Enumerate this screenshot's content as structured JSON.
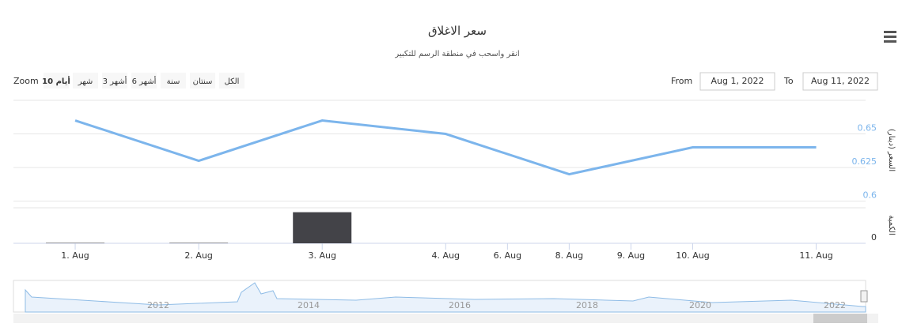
{
  "chart_data": {
    "type": "stock",
    "title": "سعر الاغلاق",
    "subtitle": "انقر واسحب في منطقة الرسم للتكبير",
    "zoom_label": "Zoom",
    "zoom_buttons": [
      "10 أيام",
      "شهر",
      "3 أشهر",
      "6 أشهر",
      "سنة",
      "سنتان",
      "الكل"
    ],
    "zoom_selected": 0,
    "from_label": "From",
    "from_value": "Aug 1, 2022",
    "to_label": "To",
    "to_value": "Aug 11, 2022",
    "categories": [
      "1. Aug",
      "2. Aug",
      "3. Aug",
      "4. Aug",
      "8. Aug",
      "10. Aug",
      "11. Aug"
    ],
    "xlim": [
      -0.5,
      6.4
    ],
    "xticks": [
      {
        "value": 0,
        "label": "1. Aug"
      },
      {
        "value": 1,
        "label": "2. Aug"
      },
      {
        "value": 2,
        "label": "3. Aug"
      },
      {
        "value": 3,
        "label": "4. Aug"
      },
      {
        "value": 3.5,
        "label": "6. Aug"
      },
      {
        "value": 4,
        "label": "8. Aug"
      },
      {
        "value": 4.5,
        "label": "9. Aug"
      },
      {
        "value": 5,
        "label": "10. Aug"
      },
      {
        "value": 6,
        "label": "11. Aug"
      }
    ],
    "series": [
      {
        "name": "السعر",
        "color": "#7cb5ec",
        "values": [
          0.66,
          0.63,
          0.66,
          0.65,
          0.62,
          0.64,
          0.64
        ]
      },
      {
        "name": "الكمية",
        "color": "#434348",
        "axis": "y2",
        "values": [
          500,
          500,
          35000,
          0,
          0,
          0,
          0
        ]
      }
    ],
    "ylabel": "السعر (دينار)",
    "ylim": [
      0.598,
      0.675
    ],
    "yticks": [
      0.6,
      0.625,
      0.65
    ],
    "y2label": "الكمية",
    "y2lim": [
      0,
      40000
    ],
    "y2ticks": [
      0
    ],
    "navigator_ticks": [
      "2012",
      "2014",
      "2016",
      "2018",
      "2020",
      "2022"
    ]
  }
}
